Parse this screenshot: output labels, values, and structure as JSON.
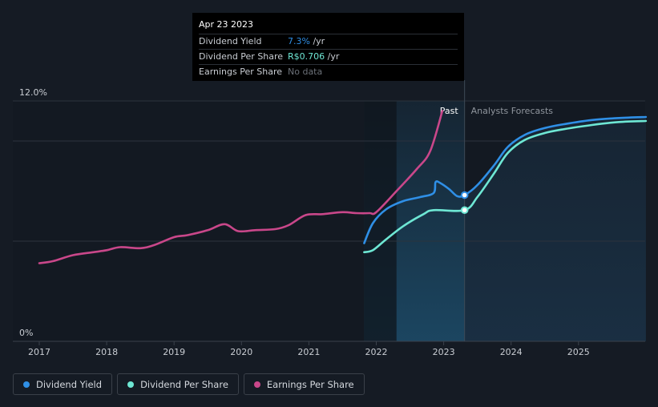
{
  "tooltip": {
    "date": "Apr 23 2023",
    "rows": [
      {
        "label": "Dividend Yield",
        "value": "7.3%",
        "unit": " /yr"
      },
      {
        "label": "Dividend Per Share",
        "value": "R$0.706",
        "unit": " /yr"
      },
      {
        "label": "Earnings Per Share",
        "value": "No data",
        "unit": ""
      }
    ]
  },
  "regions": {
    "past_label": "Past",
    "forecast_label": "Analysts Forecasts"
  },
  "legend": [
    {
      "label": "Dividend Yield",
      "color": "#2f8fe6"
    },
    {
      "label": "Dividend Per Share",
      "color": "#6ee7d4"
    },
    {
      "label": "Earnings Per Share",
      "color": "#c9478a"
    }
  ],
  "colors": {
    "dividend_yield": "#2f8fe6",
    "dividend_per_share": "#6ee7d4",
    "earnings_per_share": "#c9478a",
    "forecast_band": "#1a3044",
    "past_band": "#1c4864"
  },
  "chart_data": {
    "type": "line",
    "title": "",
    "xlabel": "",
    "ylabel": "",
    "xlim": [
      2016.6,
      2026.0
    ],
    "ylim": [
      0,
      12
    ],
    "y_tick_labels": [
      {
        "value": 12,
        "label": "12.0%"
      },
      {
        "value": 0,
        "label": "0%"
      }
    ],
    "gridlines_y": [
      12,
      10,
      5
    ],
    "x_ticks": [
      "2017",
      "2018",
      "2019",
      "2020",
      "2021",
      "2022",
      "2023",
      "2024",
      "2025"
    ],
    "past_band": [
      2021.82,
      2023.31
    ],
    "past_band_dark": [
      2021.82,
      2022.3
    ],
    "forecast_start": 2023.31,
    "highlight_date": 2023.31,
    "series": [
      {
        "name": "Earnings Per Share",
        "key": "eps",
        "points": [
          [
            2017.0,
            3.9
          ],
          [
            2017.2,
            4.0
          ],
          [
            2017.5,
            4.3
          ],
          [
            2017.8,
            4.45
          ],
          [
            2018.0,
            4.55
          ],
          [
            2018.2,
            4.7
          ],
          [
            2018.5,
            4.65
          ],
          [
            2018.7,
            4.8
          ],
          [
            2019.0,
            5.2
          ],
          [
            2019.2,
            5.3
          ],
          [
            2019.5,
            5.55
          ],
          [
            2019.75,
            5.85
          ],
          [
            2019.95,
            5.5
          ],
          [
            2020.2,
            5.55
          ],
          [
            2020.5,
            5.6
          ],
          [
            2020.7,
            5.8
          ],
          [
            2020.95,
            6.3
          ],
          [
            2021.2,
            6.35
          ],
          [
            2021.5,
            6.45
          ],
          [
            2021.7,
            6.4
          ],
          [
            2021.9,
            6.4
          ],
          [
            2022.0,
            6.45
          ],
          [
            2022.3,
            7.5
          ],
          [
            2022.6,
            8.6
          ],
          [
            2022.8,
            9.5
          ],
          [
            2022.98,
            11.5
          ]
        ]
      },
      {
        "name": "Dividend Yield",
        "key": "dy",
        "points": [
          [
            2021.82,
            4.9
          ],
          [
            2021.95,
            5.9
          ],
          [
            2022.15,
            6.6
          ],
          [
            2022.4,
            7.0
          ],
          [
            2022.65,
            7.2
          ],
          [
            2022.85,
            7.4
          ],
          [
            2022.88,
            7.95
          ],
          [
            2022.95,
            7.9
          ],
          [
            2023.08,
            7.6
          ],
          [
            2023.2,
            7.25
          ],
          [
            2023.31,
            7.3
          ],
          [
            2023.5,
            7.8
          ],
          [
            2023.75,
            8.8
          ],
          [
            2023.95,
            9.7
          ],
          [
            2024.2,
            10.3
          ],
          [
            2024.5,
            10.65
          ],
          [
            2024.8,
            10.85
          ],
          [
            2025.2,
            11.05
          ],
          [
            2025.6,
            11.15
          ],
          [
            2026.0,
            11.2
          ]
        ]
      },
      {
        "name": "Dividend Per Share",
        "key": "dps",
        "points": [
          [
            2021.82,
            4.45
          ],
          [
            2021.95,
            4.55
          ],
          [
            2022.15,
            5.1
          ],
          [
            2022.4,
            5.75
          ],
          [
            2022.7,
            6.35
          ],
          [
            2022.85,
            6.55
          ],
          [
            2023.31,
            6.55
          ],
          [
            2023.5,
            7.2
          ],
          [
            2023.75,
            8.4
          ],
          [
            2023.95,
            9.4
          ],
          [
            2024.2,
            10.05
          ],
          [
            2024.5,
            10.4
          ],
          [
            2024.8,
            10.6
          ],
          [
            2025.2,
            10.8
          ],
          [
            2025.6,
            10.95
          ],
          [
            2026.0,
            11.0
          ]
        ]
      }
    ],
    "markers": [
      {
        "series": "Dividend Yield",
        "x": 2023.31,
        "y": 7.3
      },
      {
        "series": "Dividend Per Share",
        "x": 2023.31,
        "y": 6.55
      }
    ]
  }
}
